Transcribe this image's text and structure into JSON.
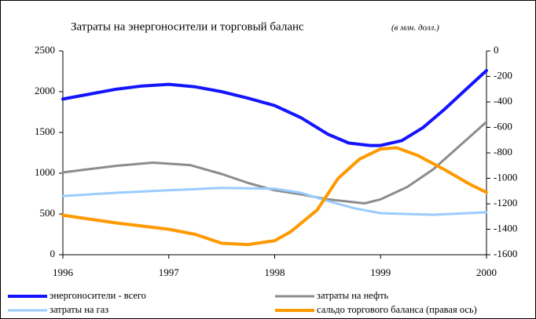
{
  "chart_data": {
    "type": "line",
    "title": "Затраты на энергоносители и торговый баланс",
    "subtitle": "(в млн. долл.)",
    "xlim": [
      1996,
      2000
    ],
    "xticks": [
      1996,
      1997,
      1998,
      1999,
      2000
    ],
    "ylim": [
      0,
      2500
    ],
    "yticks": [
      0,
      500,
      1000,
      1500,
      2000,
      2500
    ],
    "y2lim": [
      -1600,
      0
    ],
    "y2ticks": [
      -1600,
      -1400,
      -1200,
      -1000,
      -800,
      -600,
      -400,
      -200,
      0
    ],
    "grid": false,
    "series": [
      {
        "name": "энергоносители - всего",
        "color": "#1414ff",
        "axis": "y",
        "x": [
          1996,
          1996.25,
          1996.5,
          1996.75,
          1997,
          1997.25,
          1997.5,
          1997.75,
          1998,
          1998.25,
          1998.5,
          1998.7,
          1998.9,
          1999,
          1999.2,
          1999.4,
          1999.6,
          1999.8,
          2000
        ],
        "values": [
          1910,
          1970,
          2030,
          2070,
          2090,
          2060,
          2000,
          1920,
          1830,
          1680,
          1480,
          1370,
          1340,
          1340,
          1400,
          1560,
          1780,
          2020,
          2260
        ]
      },
      {
        "name": "затраты на нефть",
        "color": "#8c8c8c",
        "axis": "y",
        "x": [
          1996,
          1996.25,
          1996.5,
          1996.85,
          1997.2,
          1997.5,
          1997.75,
          1998,
          1998.25,
          1998.5,
          1998.85,
          1999,
          1999.25,
          1999.5,
          1999.75,
          2000
        ],
        "values": [
          1010,
          1050,
          1090,
          1130,
          1100,
          990,
          880,
          790,
          740,
          680,
          630,
          680,
          830,
          1050,
          1340,
          1630
        ]
      },
      {
        "name": "затраты на газ",
        "color": "#99ccff",
        "axis": "y",
        "x": [
          1996,
          1996.5,
          1997,
          1997.5,
          1998,
          1998.25,
          1998.5,
          1998.75,
          1999,
          1999.5,
          2000
        ],
        "values": [
          720,
          760,
          790,
          820,
          810,
          760,
          660,
          570,
          510,
          490,
          520
        ]
      },
      {
        "name": "сальдо торгового баланса (правая ось)",
        "color": "#ff9900",
        "axis": "y2",
        "x": [
          1996,
          1996.5,
          1997,
          1997.25,
          1997.5,
          1997.75,
          1998,
          1998.15,
          1998.4,
          1998.6,
          1998.8,
          1999,
          1999.15,
          1999.35,
          1999.6,
          1999.85,
          2000
        ],
        "values": [
          -1290,
          -1350,
          -1400,
          -1440,
          -1510,
          -1520,
          -1490,
          -1420,
          -1250,
          -1000,
          -850,
          -770,
          -760,
          -820,
          -930,
          -1050,
          -1110
        ]
      }
    ]
  }
}
